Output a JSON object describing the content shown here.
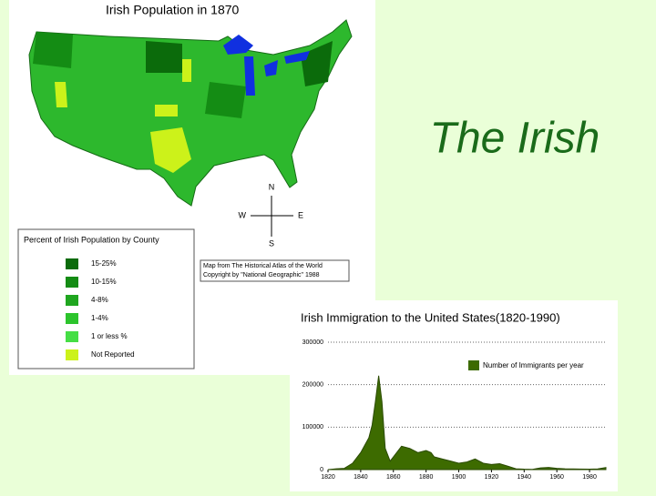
{
  "slide_title": "The Irish",
  "map": {
    "title": "Irish Population in 1870",
    "compass": {
      "n": "N",
      "e": "E",
      "s": "S",
      "w": "W"
    },
    "legend_title": "Percent of Irish Population by County",
    "legend": [
      {
        "label": "15-25%",
        "color": "#0b6b0b"
      },
      {
        "label": "10-15%",
        "color": "#148c14"
      },
      {
        "label": "4-8%",
        "color": "#1fa61f"
      },
      {
        "label": "1-4%",
        "color": "#2cc42c"
      },
      {
        "label": "1 or less %",
        "color": "#45de45"
      },
      {
        "label": "Not Reported",
        "color": "#ccf21a"
      }
    ],
    "source": [
      "Map from The Historical Atlas of the World",
      "Copyright by \"National Geographic\" 1988"
    ]
  },
  "chart_data": {
    "type": "area",
    "title": "Irish Immigration to the United States(1820-1990)",
    "series": [
      {
        "name": "Number of Immigrants per year",
        "color": "#3d6b00",
        "x": [
          1820,
          1825,
          1830,
          1835,
          1840,
          1845,
          1847,
          1849,
          1851,
          1853,
          1855,
          1858,
          1860,
          1865,
          1870,
          1875,
          1880,
          1883,
          1885,
          1890,
          1895,
          1900,
          1905,
          1910,
          1915,
          1920,
          1925,
          1930,
          1935,
          1940,
          1945,
          1950,
          1955,
          1960,
          1965,
          1970,
          1980,
          1985,
          1990
        ],
        "values": [
          0,
          2000,
          3000,
          15000,
          40000,
          75000,
          105000,
          160000,
          221000,
          160000,
          50000,
          20000,
          30000,
          55000,
          50000,
          40000,
          45000,
          40000,
          30000,
          25000,
          20000,
          15000,
          18000,
          25000,
          15000,
          12000,
          14000,
          8000,
          2000,
          1000,
          500,
          4000,
          5000,
          3000,
          2000,
          1500,
          1000,
          1500,
          5000
        ]
      }
    ],
    "xlim": [
      1820,
      1990
    ],
    "xticks": [
      1820,
      1840,
      1860,
      1880,
      1900,
      1920,
      1940,
      1960,
      1980
    ],
    "ylim": [
      0,
      300000
    ],
    "yticks": [
      0,
      100000,
      200000,
      300000
    ],
    "grid": true
  }
}
